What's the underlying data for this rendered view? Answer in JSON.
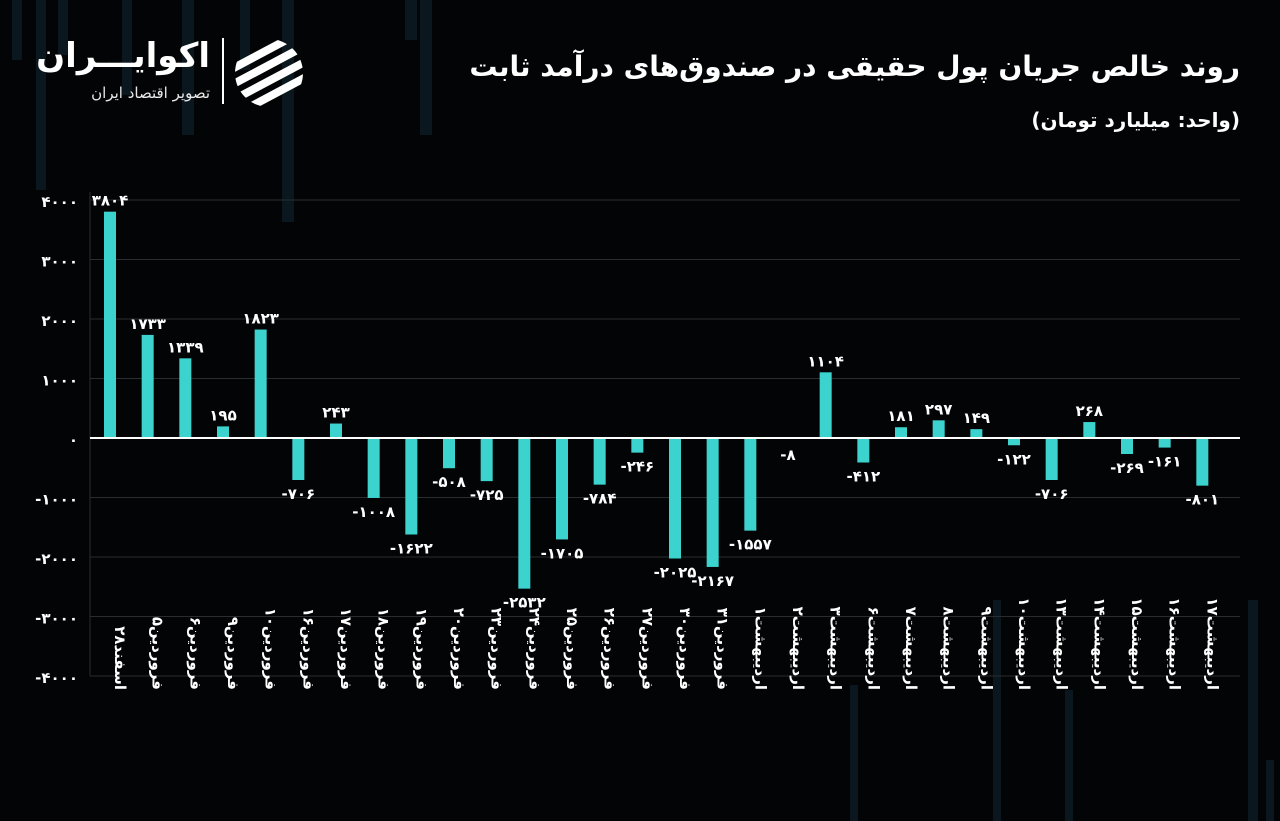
{
  "header": {
    "title": "روند خالص جریان پول حقیقی در صندوق‌های درآمد ثابت",
    "subtitle": "(واحد: میلیارد تومان)"
  },
  "logo": {
    "name": "اکوایـــران",
    "tagline": "تصویر اقتصاد ایران"
  },
  "colors": {
    "background": "#030405",
    "bar": "#3cd3cf",
    "text": "#ffffff",
    "axis": "#ffffff",
    "grid": "#2a2d30"
  },
  "chart_data": {
    "type": "bar",
    "ylim": [
      -4000,
      4000
    ],
    "yticks": [
      4000,
      3000,
      2000,
      1000,
      0,
      -1000,
      -2000,
      -3000,
      -4000
    ],
    "ytick_labels": [
      "۴۰۰۰",
      "۳۰۰۰",
      "۲۰۰۰",
      "۱۰۰۰",
      "۰",
      "-۱۰۰۰",
      "-۲۰۰۰",
      "-۳۰۰۰",
      "-۴۰۰۰"
    ],
    "grid": true,
    "categories": [
      "اسفند۲۸",
      "فروردین۵",
      "فروردین۶",
      "فروردین۹",
      "فروردین۱۰",
      "فروردین۱۶",
      "فروردین۱۷",
      "فروردین۱۸",
      "فروردین۱۹",
      "فروردین۲۰",
      "فروردین۲۳",
      "فروردین۲۴",
      "فروردین۲۵",
      "فروردین۲۶",
      "فروردین۲۷",
      "فروردین۳۰",
      "فروردین۳۱",
      "اردیبهشت۱",
      "اردیبهشت۲",
      "اردیبهشت۳",
      "اردیبهشت۶",
      "اردیبهشت۷",
      "اردیبهشت۸",
      "اردیبهشت۹",
      "اردیبهشت۱۰",
      "اردیبهشت۱۳",
      "اردیبهشت۱۴",
      "اردیبهشت۱۵",
      "اردیبهشت۱۶",
      "اردیبهشت۱۷"
    ],
    "values": [
      3804,
      1733,
      1339,
      195,
      1823,
      -706,
      243,
      -1008,
      -1622,
      -508,
      -725,
      -2532,
      -1705,
      -784,
      -246,
      -2025,
      -2167,
      -1557,
      -8,
      1104,
      -412,
      181,
      297,
      149,
      -122,
      -706,
      268,
      -269,
      -161,
      -801
    ],
    "value_labels": [
      "۳۸۰۴",
      "۱۷۳۳",
      "۱۳۳۹",
      "۱۹۵",
      "۱۸۲۳",
      "-۷۰۶",
      "۲۴۳",
      "-۱۰۰۸",
      "-۱۶۲۲",
      "-۵۰۸",
      "-۷۲۵",
      "-۲۵۳۲",
      "-۱۷۰۵",
      "-۷۸۴",
      "-۲۴۶",
      "-۲۰۲۵",
      "-۲۱۶۷",
      "-۱۵۵۷",
      "-۸",
      "۱۱۰۴",
      "-۴۱۲",
      "۱۸۱",
      "۲۹۷",
      "۱۴۹",
      "-۱۲۲",
      "-۷۰۶",
      "۲۶۸",
      "-۲۶۹",
      "-۱۶۱",
      "-۸۰۱"
    ]
  }
}
